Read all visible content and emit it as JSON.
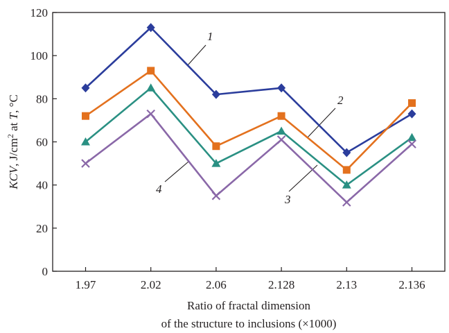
{
  "chart_data": {
    "type": "line",
    "xlabel_lines": [
      "Ratio of fractal dimension",
      "of the structure to inclusions (×1000)"
    ],
    "ylabel": {
      "var": "KCV",
      "unit_pre": ", J/cm",
      "unit_exp": "2",
      "at_text": " at ",
      "at_var": "T",
      "unit_post": ", °C"
    },
    "categories": [
      "1.97",
      "2.02",
      "2.06",
      "2.128",
      "2.13",
      "2.136"
    ],
    "ylim": [
      0,
      120
    ],
    "yticks": [
      0,
      20,
      40,
      60,
      80,
      100,
      120
    ],
    "grid": false,
    "series": [
      {
        "name": "1",
        "color": "#2b3d9c",
        "marker": "diamond",
        "values": [
          85,
          113,
          82,
          85,
          55,
          73
        ]
      },
      {
        "name": "2",
        "color": "#e3711e",
        "marker": "square",
        "values": [
          72,
          93,
          58,
          72,
          47,
          78
        ]
      },
      {
        "name": "3",
        "color": "#2a9083",
        "marker": "triangle",
        "values": [
          60,
          85,
          50,
          65,
          40,
          62
        ]
      },
      {
        "name": "4",
        "color": "#8a68a8",
        "marker": "x",
        "values": [
          50,
          73,
          35,
          61,
          32,
          59
        ]
      }
    ]
  }
}
